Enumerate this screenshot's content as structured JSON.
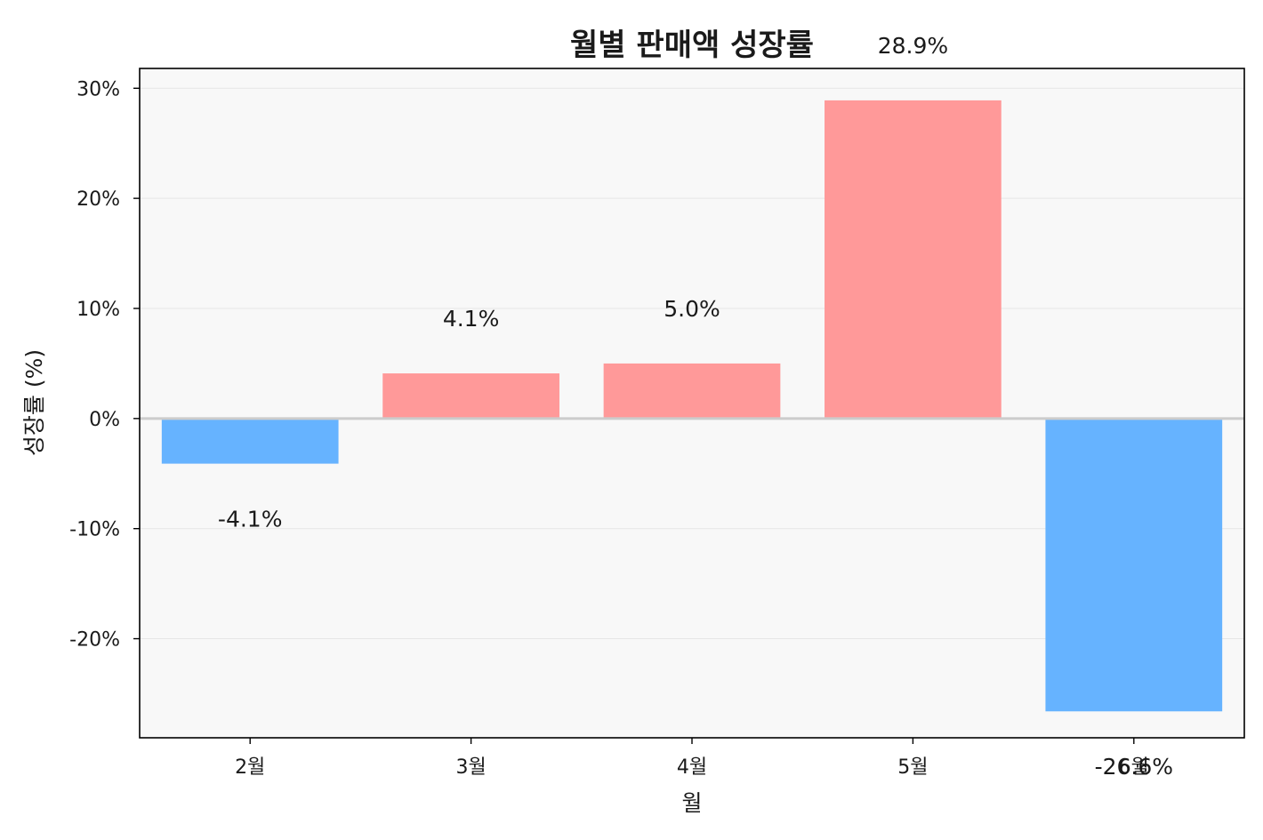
{
  "chart_data": {
    "type": "bar",
    "title": "월별 판매액 성장률",
    "xlabel": "월",
    "ylabel": "성장률 (%)",
    "categories": [
      "2월",
      "3월",
      "4월",
      "5월",
      "6월"
    ],
    "values": [
      -4.1,
      4.1,
      5.0,
      28.9,
      -26.6
    ],
    "data_labels": [
      "-4.1%",
      "4.1%",
      "5.0%",
      "28.9%",
      "-26.6%"
    ],
    "ylim": [
      -29,
      31.8
    ],
    "yticks": [
      30,
      20,
      10,
      0,
      -10,
      -20
    ],
    "ytick_labels": [
      "30%",
      "20%",
      "10%",
      "0%",
      "-10%",
      "-20%"
    ],
    "grid": true,
    "colors": {
      "positive": "#ff9999",
      "negative": "#66b3ff",
      "plot_background": "#f8f8f8",
      "grid": "#e6e6e6",
      "zero_line": "#cccccc"
    }
  }
}
